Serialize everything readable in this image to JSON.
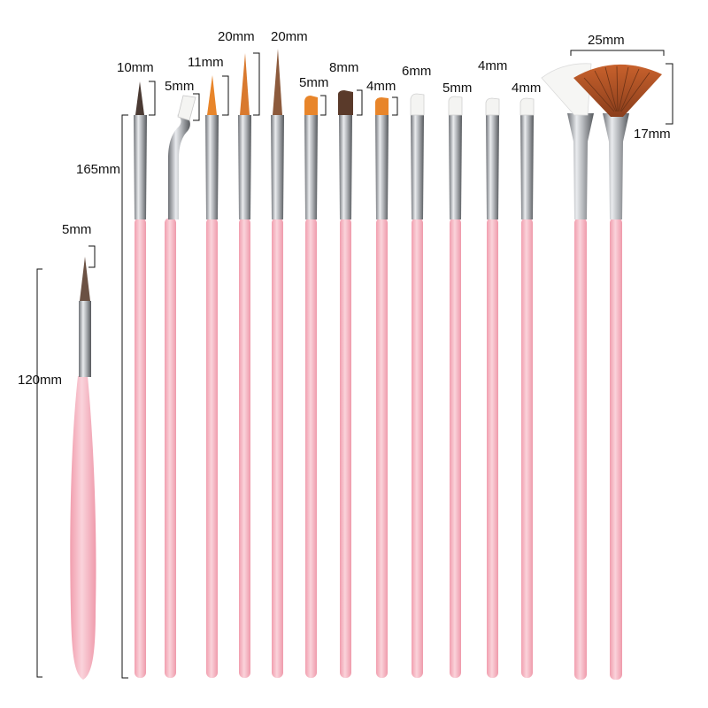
{
  "product": {
    "handle_color": "#f7c1cc",
    "ferrule_color": "#b9bcc0",
    "bristle_colors": {
      "dark": "#5a3a2a",
      "orange": "#e8852a",
      "brown": "#b2552a",
      "white": "#f4f4f2"
    }
  },
  "labels": {
    "short_brush_length": "120mm",
    "short_brush_tip": "5mm",
    "long_brush_length": "165mm",
    "liner_10": "10mm",
    "angled_5": "5mm",
    "striper_11": "11mm",
    "striper_20a": "20mm",
    "striper_20b": "20mm",
    "flat_orange_5": "5mm",
    "flat_brown_8": "8mm",
    "flat_orange_4": "4mm",
    "flat_white_6": "6mm",
    "flat_white_5": "5mm",
    "flat_white_4a": "4mm",
    "flat_white_4b": "4mm",
    "fan_width": "25mm",
    "fan_height": "17mm"
  }
}
